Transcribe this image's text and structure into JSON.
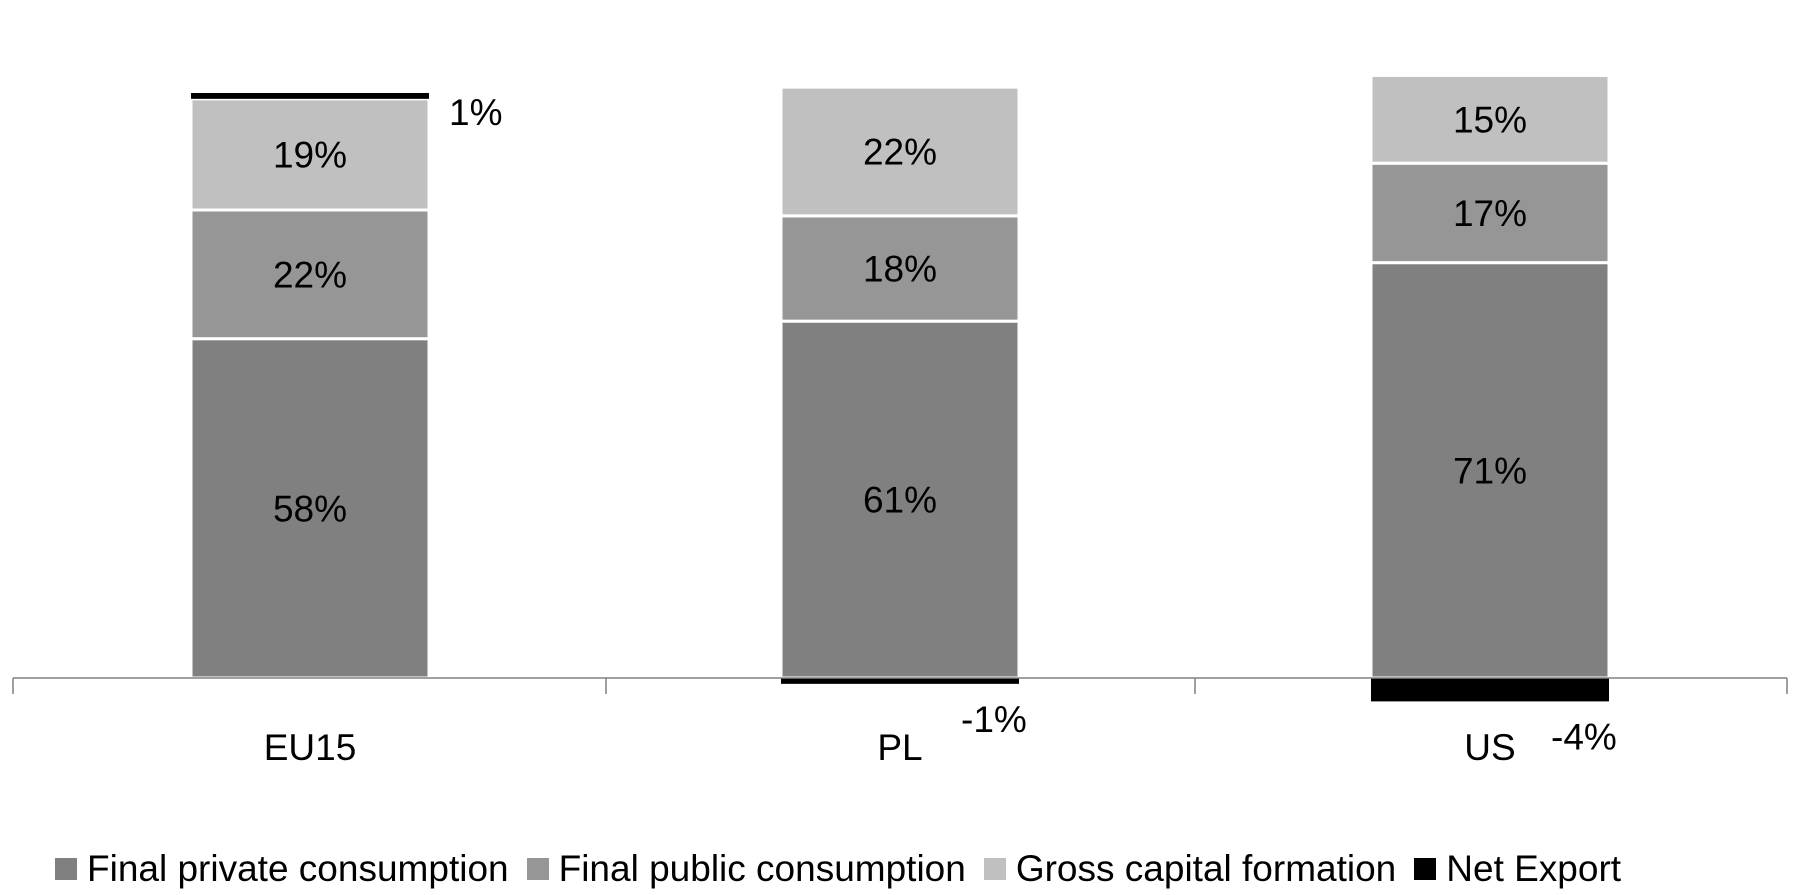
{
  "chart_data": {
    "type": "bar",
    "stacked": true,
    "categories": [
      "EU15",
      "PL",
      "US"
    ],
    "series": [
      {
        "name": "Final private consumption",
        "values": [
          58,
          61,
          71
        ],
        "color": "#808080",
        "labels": [
          "58%",
          "61%",
          "71%"
        ]
      },
      {
        "name": "Final public consumption",
        "values": [
          22,
          18,
          17
        ],
        "color": "#969696",
        "labels": [
          "22%",
          "18%",
          "17%"
        ]
      },
      {
        "name": "Gross capital formation",
        "values": [
          19,
          22,
          15
        ],
        "color": "#c0c0c0",
        "labels": [
          "19%",
          "22%",
          "15%"
        ]
      },
      {
        "name": "Net Export",
        "values": [
          1,
          -1,
          -4
        ],
        "color": "#000000",
        "labels": [
          "1%",
          "-1%",
          "-4%"
        ]
      }
    ],
    "ylim": [
      -4,
      100
    ],
    "grid": false,
    "legend_position": "bottom"
  }
}
